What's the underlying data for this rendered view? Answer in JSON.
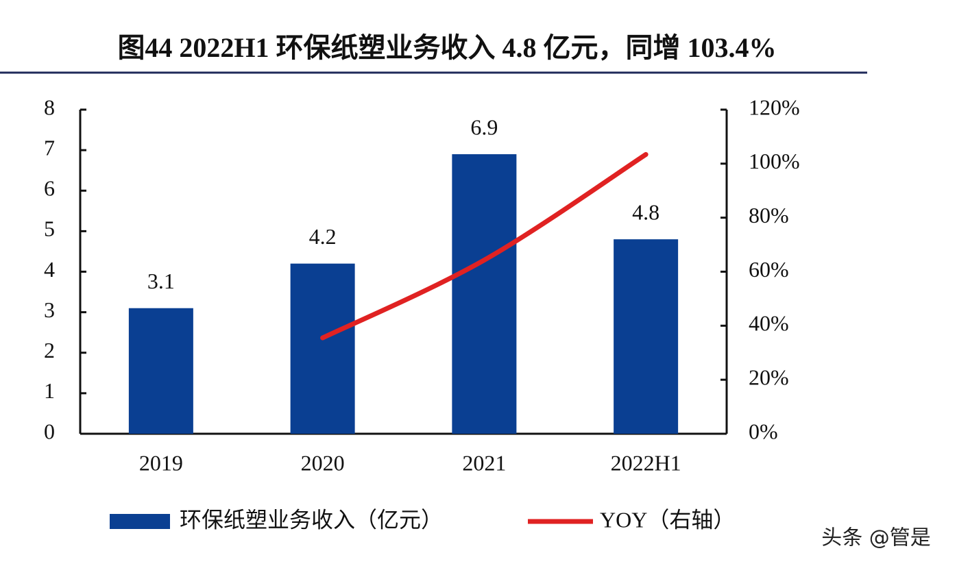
{
  "chart_data": {
    "type": "bar_line",
    "title": "图44 2022H1 环保纸塑业务收入 4.8 亿元，同增 103.4%",
    "categories": [
      "2019",
      "2020",
      "2021",
      "2022H1"
    ],
    "series": [
      {
        "name": "环保纸塑业务收入（亿元）",
        "color": "#0a3f92",
        "type": "bar",
        "values": [
          3.1,
          4.2,
          6.9,
          4.8
        ]
      },
      {
        "name": "YOY（右轴）",
        "color": "#e02222",
        "type": "line",
        "axis": "y2",
        "values": [
          null,
          35.5,
          64.3,
          103.4
        ]
      }
    ],
    "ylim": [
      0,
      8
    ],
    "yticks": [
      0,
      1,
      2,
      3,
      4,
      5,
      6,
      7,
      8
    ],
    "y2lim": [
      0,
      120
    ],
    "y2ticks": [
      {
        "value": 0,
        "label": "0%"
      },
      {
        "value": 20,
        "label": "20%"
      },
      {
        "value": 40,
        "label": "40%"
      },
      {
        "value": 60,
        "label": "60%"
      },
      {
        "value": 80,
        "label": "80%"
      },
      {
        "value": 100,
        "label": "100%"
      },
      {
        "value": 120,
        "label": "120%"
      }
    ],
    "watermark": "头条 @管是"
  }
}
